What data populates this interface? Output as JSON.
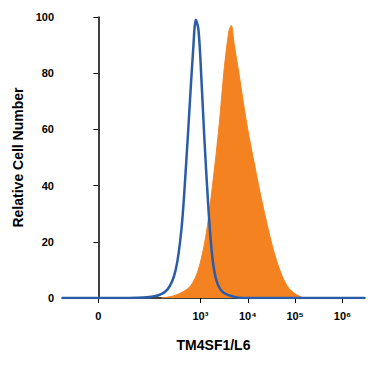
{
  "chart_data": {
    "type": "line",
    "x_label": "TM4SF1/L6",
    "y_label": "Relative Cell Number",
    "xlim": [
      -40,
      3000000
    ],
    "xticks": [
      0,
      {
        "value": 1000,
        "label": "10³"
      },
      {
        "value": 10000,
        "label": "10⁴"
      },
      {
        "value": 100000,
        "label": "10⁵"
      },
      {
        "value": 1000000,
        "label": "10⁶"
      }
    ],
    "ylim": [
      0,
      100
    ],
    "yticks": [
      0,
      20,
      40,
      60,
      80,
      100
    ],
    "grid": false,
    "series": [
      {
        "type": "area",
        "color": "#f58220",
        "x": [
          150,
          300,
          600,
          900,
          1300,
          1800,
          2500,
          3200,
          4000,
          4500,
          5200,
          6500,
          8000,
          10000,
          13000,
          18000,
          25000,
          35000,
          50000,
          70000,
          100000,
          150000
        ],
        "values": [
          0,
          1,
          4,
          10,
          22,
          40,
          62,
          82,
          95,
          97,
          90,
          80,
          70,
          60,
          50,
          38,
          27,
          17,
          9,
          4,
          1.5,
          0
        ]
      },
      {
        "type": "line",
        "color": "#2a5ca8",
        "x": [
          -40,
          30,
          100,
          200,
          300,
          400,
          500,
          600,
          700,
          800,
          900,
          1000,
          1200,
          1500,
          1800,
          2200,
          3000,
          5000,
          8000,
          3000000
        ],
        "values": [
          0,
          0,
          0.5,
          3,
          10,
          25,
          48,
          70,
          88,
          99,
          96,
          85,
          58,
          30,
          14,
          6,
          2,
          0.5,
          0,
          0
        ]
      }
    ]
  }
}
